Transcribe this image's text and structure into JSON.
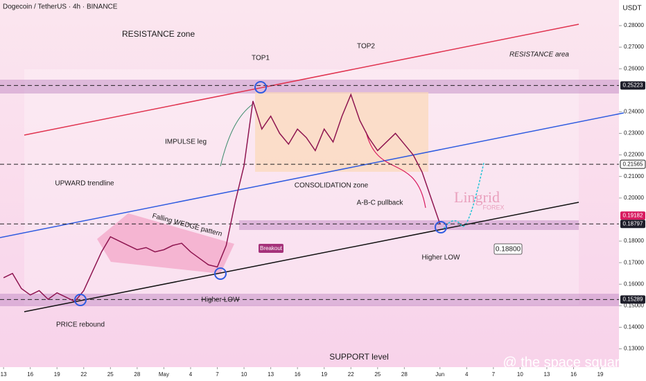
{
  "chart_data": {
    "type": "line",
    "title": "Dogecoin / TetherUS · 4h · BINANCE",
    "y_axis_unit": "USDT",
    "x": [
      0,
      1,
      2,
      3,
      4,
      5,
      6,
      7,
      8,
      9,
      10,
      11,
      12,
      13,
      14,
      15,
      16,
      17,
      18,
      19,
      20,
      21,
      22,
      23,
      24,
      25,
      26,
      27,
      28,
      29,
      30,
      31,
      32,
      33,
      34,
      35,
      36,
      37,
      38,
      39,
      40,
      41,
      42,
      43,
      44,
      45,
      46,
      47,
      48,
      49
    ],
    "values": [
      0.163,
      0.165,
      0.158,
      0.155,
      0.157,
      0.153,
      0.156,
      0.154,
      0.152,
      0.157,
      0.166,
      0.175,
      0.182,
      0.18,
      0.178,
      0.176,
      0.177,
      0.175,
      0.176,
      0.178,
      0.179,
      0.175,
      0.172,
      0.169,
      0.168,
      0.178,
      0.198,
      0.215,
      0.245,
      0.232,
      0.238,
      0.23,
      0.225,
      0.232,
      0.228,
      0.222,
      0.232,
      0.226,
      0.238,
      0.248,
      0.236,
      0.228,
      0.222,
      0.226,
      0.23,
      0.225,
      0.22,
      0.212,
      0.2,
      0.188
    ],
    "color": "#8e1550",
    "xlim": [
      -0.4,
      69.1
    ],
    "ylim": [
      0.1215,
      0.2919
    ],
    "xticks": [
      {
        "value": 0,
        "label": "13"
      },
      {
        "value": 3,
        "label": "16"
      },
      {
        "value": 6,
        "label": "19"
      },
      {
        "value": 9,
        "label": "22"
      },
      {
        "value": 12,
        "label": "25"
      },
      {
        "value": 15,
        "label": "28"
      },
      {
        "value": 18,
        "label": "May"
      },
      {
        "value": 21,
        "label": "4"
      },
      {
        "value": 24,
        "label": "7"
      },
      {
        "value": 27,
        "label": "10"
      },
      {
        "value": 30,
        "label": "13"
      },
      {
        "value": 33,
        "label": "16"
      },
      {
        "value": 36,
        "label": "19"
      },
      {
        "value": 39,
        "label": "22"
      },
      {
        "value": 42,
        "label": "25"
      },
      {
        "value": 45,
        "label": "28"
      },
      {
        "value": 49,
        "label": "Jun"
      },
      {
        "value": 52,
        "label": "4"
      },
      {
        "value": 55,
        "label": "7"
      },
      {
        "value": 58,
        "label": "10"
      },
      {
        "value": 61,
        "label": "13"
      },
      {
        "value": 64,
        "label": "16"
      },
      {
        "value": 67,
        "label": "19"
      }
    ],
    "yticks": [
      {
        "value": 0.28,
        "label": "0.28000"
      },
      {
        "value": 0.27,
        "label": "0.27000"
      },
      {
        "value": 0.26,
        "label": "0.26000"
      },
      {
        "value": 0.24,
        "label": "0.24000"
      },
      {
        "value": 0.23,
        "label": "0.23000"
      },
      {
        "value": 0.22,
        "label": "0.22000"
      },
      {
        "value": 0.21,
        "label": "0.21000"
      },
      {
        "value": 0.2,
        "label": "0.20000"
      },
      {
        "value": 0.18,
        "label": "0.18000"
      },
      {
        "value": 0.17,
        "label": "0.17000"
      },
      {
        "value": 0.16,
        "label": "0.16000"
      },
      {
        "value": 0.15,
        "label": "0.15000"
      },
      {
        "value": 0.14,
        "label": "0.14000"
      },
      {
        "value": 0.13,
        "label": "0.13000"
      }
    ],
    "price_labels": [
      {
        "value": 0.25223,
        "label": "0.25223",
        "color": "#1e1e2a",
        "line": true
      },
      {
        "value": 0.21565,
        "label": "0.21565",
        "color": "#ffffff",
        "line": true
      },
      {
        "value": 0.19182,
        "label": "0.19182",
        "color": "#d81b60",
        "line": false
      },
      {
        "value": 0.18797,
        "label": "0.18797",
        "color": "#1e1e2a",
        "line": true
      },
      {
        "value": 0.15289,
        "label": "0.15289",
        "color": "#1e1e2a",
        "line": true
      }
    ],
    "annotations": [
      "RESISTANCE zone",
      "TOP1",
      "TOP2",
      "RESISTANCE area",
      "IMPULSE leg",
      "UPWARD trendline",
      "CONSOLIDATION zone",
      "Falling WEDGE pattern",
      "Breakout",
      "A-B-C pullback",
      "Higher LOW",
      "Higher LOW",
      "PRICE rebound",
      "0.18800",
      "SUPPORT level",
      "Lingrid",
      "FOREX",
      "@ the space square"
    ]
  }
}
